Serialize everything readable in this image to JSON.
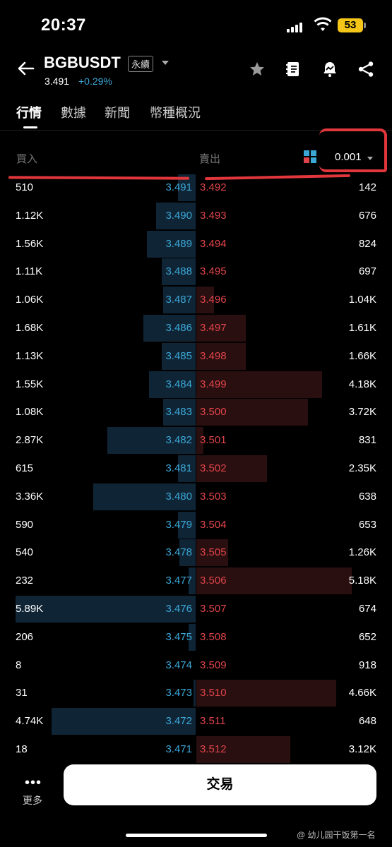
{
  "status_bar": {
    "time": "20:37",
    "battery": "53"
  },
  "header": {
    "symbol": "BGBUSDT",
    "contract_type": "永續",
    "last_price": "3.491",
    "change": "+0.29%"
  },
  "tabs": [
    {
      "label": "行情",
      "active": true
    },
    {
      "label": "數據",
      "active": false
    },
    {
      "label": "新聞",
      "active": false
    },
    {
      "label": "幣種概況",
      "active": false
    }
  ],
  "orderbook": {
    "bid_label": "買入",
    "ask_label": "賣出",
    "precision": "0.001",
    "rows": [
      {
        "bid_qty": "510",
        "bid_price": "3.491",
        "ask_price": "3.492",
        "ask_qty": "142",
        "bid_depth": 0.1,
        "ask_depth": 0.0
      },
      {
        "bid_qty": "1.12K",
        "bid_price": "3.490",
        "ask_price": "3.493",
        "ask_qty": "676",
        "bid_depth": 0.22,
        "ask_depth": 0.0
      },
      {
        "bid_qty": "1.56K",
        "bid_price": "3.489",
        "ask_price": "3.494",
        "ask_qty": "824",
        "bid_depth": 0.27,
        "ask_depth": 0.0
      },
      {
        "bid_qty": "1.11K",
        "bid_price": "3.488",
        "ask_price": "3.495",
        "ask_qty": "697",
        "bid_depth": 0.19,
        "ask_depth": 0.0
      },
      {
        "bid_qty": "1.06K",
        "bid_price": "3.487",
        "ask_price": "3.496",
        "ask_qty": "1.04K",
        "bid_depth": 0.18,
        "ask_depth": 0.1
      },
      {
        "bid_qty": "1.68K",
        "bid_price": "3.486",
        "ask_price": "3.497",
        "ask_qty": "1.61K",
        "bid_depth": 0.29,
        "ask_depth": 0.28
      },
      {
        "bid_qty": "1.13K",
        "bid_price": "3.485",
        "ask_price": "3.498",
        "ask_qty": "1.66K",
        "bid_depth": 0.19,
        "ask_depth": 0.28
      },
      {
        "bid_qty": "1.55K",
        "bid_price": "3.484",
        "ask_price": "3.499",
        "ask_qty": "4.18K",
        "bid_depth": 0.26,
        "ask_depth": 0.71
      },
      {
        "bid_qty": "1.08K",
        "bid_price": "3.483",
        "ask_price": "3.500",
        "ask_qty": "3.72K",
        "bid_depth": 0.18,
        "ask_depth": 0.63
      },
      {
        "bid_qty": "2.87K",
        "bid_price": "3.482",
        "ask_price": "3.501",
        "ask_qty": "831",
        "bid_depth": 0.49,
        "ask_depth": 0.04
      },
      {
        "bid_qty": "615",
        "bid_price": "3.481",
        "ask_price": "3.502",
        "ask_qty": "2.35K",
        "bid_depth": 0.1,
        "ask_depth": 0.4
      },
      {
        "bid_qty": "3.36K",
        "bid_price": "3.480",
        "ask_price": "3.503",
        "ask_qty": "638",
        "bid_depth": 0.57,
        "ask_depth": 0.0
      },
      {
        "bid_qty": "590",
        "bid_price": "3.479",
        "ask_price": "3.504",
        "ask_qty": "653",
        "bid_depth": 0.1,
        "ask_depth": 0.0
      },
      {
        "bid_qty": "540",
        "bid_price": "3.478",
        "ask_price": "3.505",
        "ask_qty": "1.26K",
        "bid_depth": 0.09,
        "ask_depth": 0.18
      },
      {
        "bid_qty": "232",
        "bid_price": "3.477",
        "ask_price": "3.506",
        "ask_qty": "5.18K",
        "bid_depth": 0.04,
        "ask_depth": 0.88
      },
      {
        "bid_qty": "5.89K",
        "bid_price": "3.476",
        "ask_price": "3.507",
        "ask_qty": "674",
        "bid_depth": 1.0,
        "ask_depth": 0.0
      },
      {
        "bid_qty": "206",
        "bid_price": "3.475",
        "ask_price": "3.508",
        "ask_qty": "652",
        "bid_depth": 0.04,
        "ask_depth": 0.0
      },
      {
        "bid_qty": "8",
        "bid_price": "3.474",
        "ask_price": "3.509",
        "ask_qty": "918",
        "bid_depth": 0.0,
        "ask_depth": 0.0
      },
      {
        "bid_qty": "31",
        "bid_price": "3.473",
        "ask_price": "3.510",
        "ask_qty": "4.66K",
        "bid_depth": 0.01,
        "ask_depth": 0.79
      },
      {
        "bid_qty": "4.74K",
        "bid_price": "3.472",
        "ask_price": "3.511",
        "ask_qty": "648",
        "bid_depth": 0.8,
        "ask_depth": 0.0
      },
      {
        "bid_qty": "18",
        "bid_price": "3.471",
        "ask_price": "3.512",
        "ask_qty": "3.12K",
        "bid_depth": 0.0,
        "ask_depth": 0.53
      }
    ]
  },
  "bottom": {
    "more_label": "更多",
    "trade_label": "交易"
  },
  "watermark": "@ 幼儿园干饭第一名",
  "colors": {
    "bid": "#3ba7d6",
    "ask": "#e0444a",
    "annotation": "#e0363c"
  }
}
